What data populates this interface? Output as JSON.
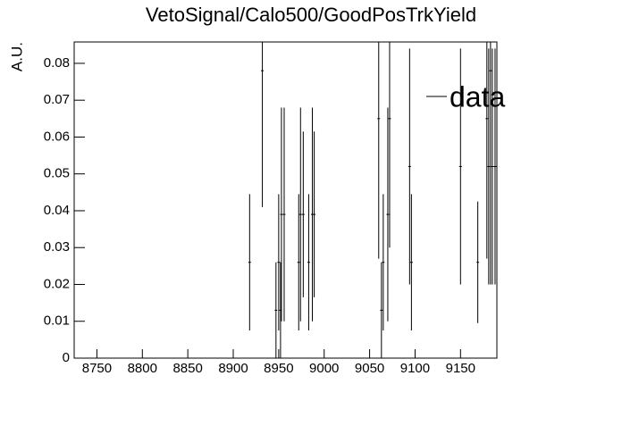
{
  "chart_data": {
    "type": "errorbar",
    "title": "VetoSignal/Calo500/GoodPosTrkYield",
    "ylabel": "A.U.",
    "x": [
      8918,
      8932,
      8947,
      8950,
      8952,
      8953,
      8956,
      8972,
      8974,
      8977,
      8983,
      8987,
      8989,
      9060,
      9063,
      9065,
      9070,
      9072,
      9094,
      9096,
      9150,
      9169,
      9179,
      9181,
      9183,
      9185,
      9188
    ],
    "values": [
      0.026,
      0.078,
      0.013,
      0.026,
      0.013,
      0.039,
      0.039,
      0.026,
      0.039,
      0.039,
      0.026,
      0.039,
      0.039,
      0.065,
      0.013,
      0.026,
      0.039,
      0.065,
      0.052,
      0.026,
      0.052,
      0.026,
      0.065,
      0.052,
      0.078,
      0.052,
      0.052
    ],
    "errors": [
      0.0185,
      0.037,
      0.013,
      0.0185,
      0.013,
      0.029,
      0.029,
      0.0185,
      0.029,
      0.0225,
      0.0185,
      0.029,
      0.0225,
      0.038,
      0.013,
      0.0185,
      0.029,
      0.035,
      0.032,
      0.0185,
      0.032,
      0.0165,
      0.038,
      0.032,
      0.058,
      0.032,
      0.032
    ],
    "series_name": "data",
    "color": "#000000",
    "xlim": [
      8725,
      9190
    ],
    "xticks": [
      8750,
      8800,
      8850,
      8900,
      8950,
      9000,
      9050,
      9100,
      9150
    ],
    "ylim": [
      0,
      0.0858
    ],
    "yticks": [
      0,
      0.01,
      0.02,
      0.03,
      0.04,
      0.05,
      0.06,
      0.07,
      0.08
    ],
    "legend": "upper right",
    "grid": false
  }
}
